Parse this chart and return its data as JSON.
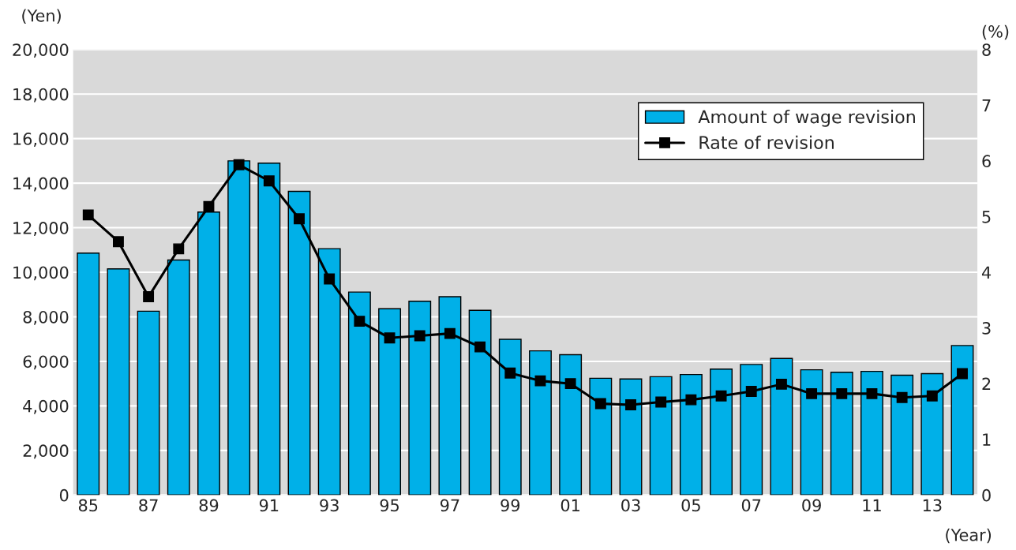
{
  "chart_data": {
    "type": "bar",
    "categories": [
      "85",
      null,
      "87",
      null,
      "89",
      null,
      "91",
      null,
      "93",
      null,
      "95",
      null,
      "97",
      null,
      "99",
      null,
      "01",
      null,
      "03",
      null,
      "05",
      null,
      "07",
      null,
      "09",
      null,
      "11",
      null,
      "13",
      null
    ],
    "series": [
      {
        "name": "Amount of wage revision",
        "color": "#00b0e8",
        "values": [
          10860,
          10150,
          8250,
          10550,
          12700,
          15000,
          14900,
          13630,
          11060,
          9110,
          8360,
          8700,
          8900,
          8290,
          6990,
          6470,
          6300,
          5240,
          5210,
          5310,
          5410,
          5650,
          5860,
          6130,
          5620,
          5510,
          5550,
          5380,
          5450,
          6710
        ]
      },
      {
        "name": "Rate of revision",
        "type": "line",
        "axis": "y2",
        "color": "#000000",
        "marker": "square",
        "values": [
          5.03,
          4.55,
          3.56,
          4.42,
          5.18,
          5.93,
          5.64,
          4.96,
          3.88,
          3.12,
          2.82,
          2.86,
          2.9,
          2.66,
          2.19,
          2.05,
          2.0,
          1.64,
          1.62,
          1.67,
          1.71,
          1.78,
          1.86,
          1.99,
          1.82,
          1.82,
          1.82,
          1.75,
          1.78,
          2.18
        ]
      }
    ],
    "ylabel": "(Yen)",
    "y2label": "(%)",
    "xlabel": "(Year)",
    "ylim": [
      0,
      20000
    ],
    "yticks": [
      {
        "value": 0,
        "label": "0"
      },
      {
        "value": 2000,
        "label": "2,000"
      },
      {
        "value": 4000,
        "label": "4,000"
      },
      {
        "value": 6000,
        "label": "6,000"
      },
      {
        "value": 8000,
        "label": "8,000"
      },
      {
        "value": 10000,
        "label": "10,000"
      },
      {
        "value": 12000,
        "label": "12,000"
      },
      {
        "value": 14000,
        "label": "14,000"
      },
      {
        "value": 16000,
        "label": "16,000"
      },
      {
        "value": 18000,
        "label": "18,000"
      },
      {
        "value": 20000,
        "label": "20,000"
      }
    ],
    "y2lim": [
      0,
      8
    ],
    "y2ticks": [
      0,
      1,
      2,
      3,
      4,
      5,
      6,
      7,
      8
    ],
    "grid": "y",
    "legend": "top right"
  }
}
